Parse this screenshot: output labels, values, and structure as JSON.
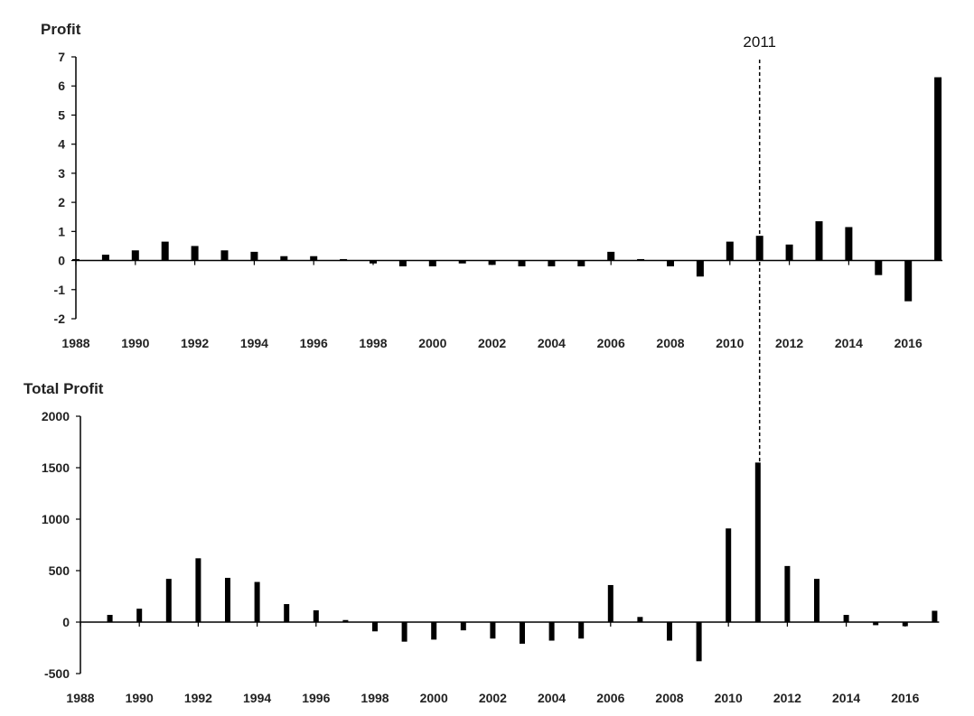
{
  "chart_data": [
    {
      "type": "bar",
      "ylabel": "Profit",
      "ylim": [
        -2,
        7
      ],
      "yticks": [
        -2,
        -1,
        0,
        1,
        2,
        3,
        4,
        5,
        6,
        7
      ],
      "xlim": [
        1988,
        2017
      ],
      "xticks": [
        1988,
        1990,
        1992,
        1994,
        1996,
        1998,
        2000,
        2002,
        2004,
        2006,
        2008,
        2010,
        2012,
        2014,
        2016
      ],
      "x": [
        1988,
        1989,
        1990,
        1991,
        1992,
        1993,
        1994,
        1995,
        1996,
        1997,
        1998,
        1999,
        2000,
        2001,
        2002,
        2003,
        2004,
        2005,
        2006,
        2007,
        2008,
        2009,
        2010,
        2011,
        2012,
        2013,
        2014,
        2015,
        2016,
        2017
      ],
      "values": [
        0.05,
        0.2,
        0.35,
        0.65,
        0.5,
        0.35,
        0.3,
        0.15,
        0.15,
        0.05,
        -0.1,
        -0.2,
        -0.2,
        -0.1,
        -0.15,
        -0.2,
        -0.2,
        -0.2,
        0.3,
        0.05,
        -0.2,
        -0.55,
        0.65,
        0.85,
        0.55,
        1.35,
        1.15,
        -0.5,
        -1.4,
        6.3
      ]
    },
    {
      "type": "bar",
      "ylabel": "Total Profit",
      "ylim": [
        -500,
        2000
      ],
      "yticks": [
        -500,
        0,
        500,
        1000,
        1500,
        2000
      ],
      "xlim": [
        1988,
        2017
      ],
      "xticks": [
        1988,
        1990,
        1992,
        1994,
        1996,
        1998,
        2000,
        2002,
        2004,
        2006,
        2008,
        2010,
        2012,
        2014,
        2016
      ],
      "x": [
        1988,
        1989,
        1990,
        1991,
        1992,
        1993,
        1994,
        1995,
        1996,
        1997,
        1998,
        1999,
        2000,
        2001,
        2002,
        2003,
        2004,
        2005,
        2006,
        2007,
        2008,
        2009,
        2010,
        2011,
        2012,
        2013,
        2014,
        2015,
        2016,
        2017
      ],
      "values": [
        0,
        70,
        130,
        420,
        620,
        430,
        390,
        175,
        115,
        20,
        -90,
        -190,
        -170,
        -80,
        -160,
        -210,
        -180,
        -160,
        360,
        50,
        -180,
        -380,
        910,
        1550,
        545,
        420,
        70,
        -30,
        -40,
        110
      ]
    }
  ],
  "marker": {
    "label": "2011",
    "x": 2011
  },
  "colors": {
    "bar": "#000000",
    "axis": "#000000",
    "text": "#222222"
  }
}
